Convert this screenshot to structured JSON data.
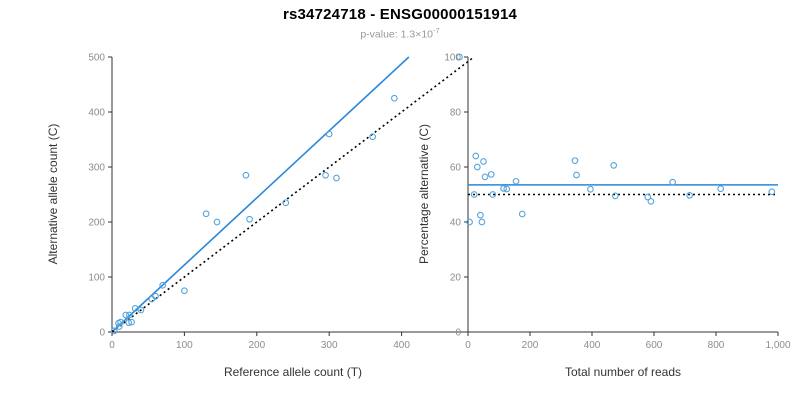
{
  "colors": {
    "background": "#FFFFFF",
    "accent_blue": "#2B87D8",
    "point_blue": "#54A4DC",
    "identity_black": "#000000",
    "axis": "#333333",
    "tick_label": "#8C8C8C",
    "axis_title": "#333333",
    "title_text": "#000000",
    "subtitle_text": "#999999"
  },
  "chart_data": {
    "title": "rs34724718 - ENSG00000151914",
    "p_value": {
      "prefix": "p-value: ",
      "mantissa": "1.3",
      "times_base": "×10",
      "exponent": "-7"
    },
    "charts": [
      {
        "name": "allele-count-scatter",
        "type": "scatter",
        "xlabel": "Reference allele count (T)",
        "ylabel": "Alternative allele count (C)",
        "xlim": [
          0,
          500
        ],
        "ylim": [
          0,
          500
        ],
        "xticks": [
          0,
          100,
          200,
          300,
          400
        ],
        "xtick_labels": [
          "0",
          "100",
          "200",
          "300",
          "400"
        ],
        "yticks": [
          0,
          100,
          200,
          300,
          400,
          500
        ],
        "ytick_labels": [
          "0",
          "100",
          "200",
          "300",
          "400",
          "500"
        ],
        "grid": false,
        "legend": "none",
        "point_color": "#54A4DC",
        "points": [
          [
            3,
            2
          ],
          [
            10,
            10
          ],
          [
            9,
            16
          ],
          [
            12,
            18
          ],
          [
            23,
            17
          ],
          [
            27,
            18
          ],
          [
            19,
            31
          ],
          [
            24,
            31
          ],
          [
            32,
            43
          ],
          [
            40,
            40
          ],
          [
            55,
            60
          ],
          [
            60,
            65
          ],
          [
            70,
            85
          ],
          [
            100,
            75
          ],
          [
            130,
            215
          ],
          [
            145,
            200
          ],
          [
            185,
            285
          ],
          [
            190,
            205
          ],
          [
            240,
            235
          ],
          [
            295,
            285
          ],
          [
            300,
            360
          ],
          [
            310,
            280
          ],
          [
            360,
            355
          ],
          [
            390,
            425
          ],
          [
            480,
            500
          ]
        ],
        "lines": [
          {
            "name": "regression-line",
            "style": "solid",
            "color": "#2B87D8",
            "from": [
              0,
              0
            ],
            "to": [
              410,
              500
            ]
          },
          {
            "name": "identity-line",
            "style": "dotted",
            "color": "#000000",
            "from": [
              0,
              0
            ],
            "to": [
              500,
              500
            ]
          }
        ]
      },
      {
        "name": "percentage-scatter",
        "type": "scatter",
        "xlabel": "Total number of reads",
        "ylabel": "Percentage alternative (C)",
        "xlim": [
          0,
          1000
        ],
        "ylim": [
          0,
          100
        ],
        "xticks": [
          0,
          200,
          400,
          600,
          800,
          1000
        ],
        "xtick_labels": [
          "0",
          "200",
          "400",
          "600",
          "800",
          "1,000"
        ],
        "yticks": [
          0,
          20,
          40,
          60,
          80,
          100
        ],
        "ytick_labels": [
          "0",
          "20",
          "40",
          "60",
          "80",
          "100"
        ],
        "grid": false,
        "legend": "none",
        "point_color": "#54A4DC",
        "points": [
          [
            5,
            40
          ],
          [
            20,
            50
          ],
          [
            25,
            64
          ],
          [
            30,
            60
          ],
          [
            40,
            42.5
          ],
          [
            45,
            40
          ],
          [
            50,
            62
          ],
          [
            55,
            56.4
          ],
          [
            75,
            57.3
          ],
          [
            80,
            50
          ],
          [
            115,
            52.2
          ],
          [
            125,
            52
          ],
          [
            155,
            54.8
          ],
          [
            175,
            42.9
          ],
          [
            345,
            62.3
          ],
          [
            350,
            57.1
          ],
          [
            395,
            51.9
          ],
          [
            470,
            60.6
          ],
          [
            475,
            49.5
          ],
          [
            580,
            49.1
          ],
          [
            590,
            47.5
          ],
          [
            660,
            54.5
          ],
          [
            715,
            49.7
          ],
          [
            815,
            52.1
          ],
          [
            980,
            51
          ]
        ],
        "lines": [
          {
            "name": "mean-percentage-line",
            "style": "solid",
            "color": "#2B87D8",
            "from": [
              0,
              53.5
            ],
            "to": [
              1000,
              53.5
            ]
          },
          {
            "name": "expected-50-percent-line",
            "style": "dotted",
            "color": "#000000",
            "from": [
              0,
              50
            ],
            "to": [
              1000,
              50
            ]
          }
        ]
      }
    ]
  }
}
